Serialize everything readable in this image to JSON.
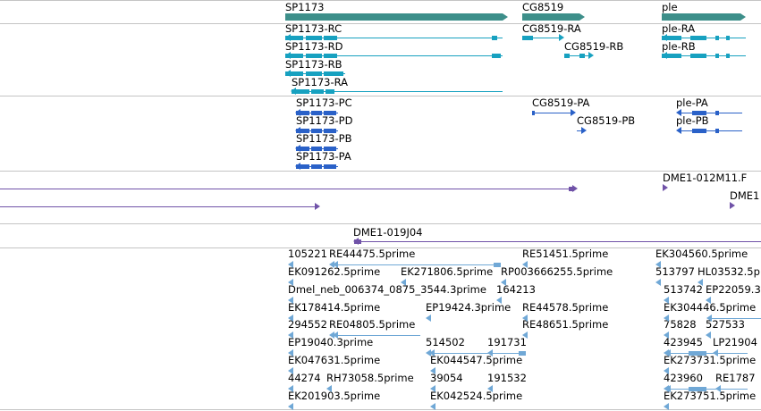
{
  "colors": {
    "gene": "#3d8f8a",
    "transcript_rna": "#17a1c0",
    "transcript_protein": "#2a61c8",
    "clone": "#7052a8",
    "est": "#70a8d6",
    "separator": "#c4c4c4"
  },
  "tracks": {
    "genes": [
      {
        "name": "SP1173",
        "strand": "+"
      },
      {
        "name": "CG8519",
        "strand": "+"
      },
      {
        "name": "ple",
        "strand": "+"
      }
    ],
    "transcripts": [
      {
        "name": "SP1173-RC",
        "strand": "-"
      },
      {
        "name": "SP1173-RD",
        "strand": "-"
      },
      {
        "name": "SP1173-RB",
        "strand": "-"
      },
      {
        "name": "SP1173-RA",
        "strand": "-"
      },
      {
        "name": "CG8519-RA",
        "strand": "+"
      },
      {
        "name": "CG8519-RB",
        "strand": "+"
      },
      {
        "name": "ple-RA",
        "strand": "-"
      },
      {
        "name": "ple-RB",
        "strand": "-"
      }
    ],
    "proteins": [
      {
        "name": "SP1173-PC",
        "strand": "-"
      },
      {
        "name": "SP1173-PD",
        "strand": "-"
      },
      {
        "name": "SP1173-PB",
        "strand": "-"
      },
      {
        "name": "SP1173-PA",
        "strand": "-"
      },
      {
        "name": "CG8519-PA",
        "strand": "+"
      },
      {
        "name": "CG8519-PB",
        "strand": "+"
      },
      {
        "name": "ple-PA",
        "strand": "-"
      },
      {
        "name": "ple-PB",
        "strand": "-"
      }
    ],
    "clones_a": [
      {
        "name": "DME1-012M11.F",
        "strand": "+"
      },
      {
        "name": "DME1",
        "strand": "+"
      }
    ],
    "clones_b": [
      {
        "name": "DME1-019J04",
        "strand": "-"
      }
    ],
    "ests": [
      {
        "name": "105221",
        "strand": "-"
      },
      {
        "name": "RE44475.5prime",
        "strand": "-"
      },
      {
        "name": "RE51451.5prime",
        "strand": "-"
      },
      {
        "name": "EK304560.5prime",
        "strand": "-"
      },
      {
        "name": "EK091262.5prime",
        "strand": "-"
      },
      {
        "name": "EK271806.5prime",
        "strand": "-"
      },
      {
        "name": "RP003666255.5prime",
        "strand": "-"
      },
      {
        "name": "513797",
        "strand": "-"
      },
      {
        "name": "HL03532.5p",
        "strand": "-"
      },
      {
        "name": "Dmel_neb_006374_0875_3544.3prime",
        "strand": "-"
      },
      {
        "name": "164213",
        "strand": "-"
      },
      {
        "name": "513742",
        "strand": "-"
      },
      {
        "name": "EP22059.3",
        "strand": "-"
      },
      {
        "name": "EK178414.5prime",
        "strand": "-"
      },
      {
        "name": "EP19424.3prime",
        "strand": "-"
      },
      {
        "name": "RE44578.5prime",
        "strand": "-"
      },
      {
        "name": "EK304446.5prime",
        "strand": "-"
      },
      {
        "name": "294552",
        "strand": "-"
      },
      {
        "name": "RE04805.5prime",
        "strand": "-"
      },
      {
        "name": "RE48651.5prime",
        "strand": "-"
      },
      {
        "name": "75828",
        "strand": "-"
      },
      {
        "name": "527533",
        "strand": "-"
      },
      {
        "name": "EP19040.3prime",
        "strand": "-"
      },
      {
        "name": "514502",
        "strand": "-"
      },
      {
        "name": "191731",
        "strand": "-"
      },
      {
        "name": "423945",
        "strand": "-"
      },
      {
        "name": "LP21904",
        "strand": "-"
      },
      {
        "name": "EK047631.5prime",
        "strand": "-"
      },
      {
        "name": "EK044547.5prime",
        "strand": "-"
      },
      {
        "name": "EK273731.5prime",
        "strand": "-"
      },
      {
        "name": "44274",
        "strand": "-"
      },
      {
        "name": "RH73058.5prime",
        "strand": "-"
      },
      {
        "name": "39054",
        "strand": "-"
      },
      {
        "name": "191532",
        "strand": "-"
      },
      {
        "name": "423960",
        "strand": "-"
      },
      {
        "name": "RE1787",
        "strand": "-"
      },
      {
        "name": "EK201903.5prime",
        "strand": "-"
      },
      {
        "name": "EK042524.5prime",
        "strand": "-"
      },
      {
        "name": "EK273751.5prime",
        "strand": "-"
      }
    ]
  }
}
